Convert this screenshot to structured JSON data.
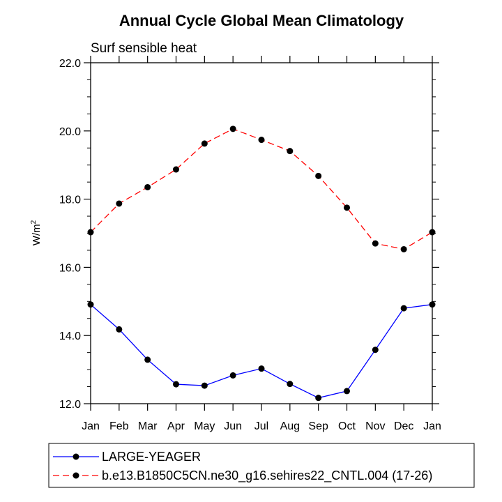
{
  "chart_data": {
    "type": "line",
    "title": "Annual Cycle Global Mean Climatology",
    "subtitle": "Surf sensible heat",
    "ylabel": "W/m",
    "ylabel_superscript": "2",
    "xlabel": "",
    "categories": [
      "Jan",
      "Feb",
      "Mar",
      "Apr",
      "May",
      "Jun",
      "Jul",
      "Aug",
      "Sep",
      "Oct",
      "Nov",
      "Dec",
      "Jan"
    ],
    "ylim": [
      12.0,
      22.0
    ],
    "yticks": [
      "12.0",
      "14.0",
      "16.0",
      "18.0",
      "20.0",
      "22.0"
    ],
    "ytick_values": [
      12,
      14,
      16,
      18,
      20,
      22
    ],
    "grid": false,
    "legend_position": "bottom",
    "series": [
      {
        "name": "LARGE-YEAGER",
        "color": "#0000ff",
        "dash": "solid",
        "marker": "filled-circle",
        "values": [
          14.91,
          14.18,
          13.29,
          12.57,
          12.53,
          12.83,
          13.03,
          12.58,
          12.17,
          12.37,
          13.58,
          14.8,
          14.91
        ]
      },
      {
        "name": "b.e13.B1850C5CN.ne30_g16.sehires22_CNTL.004 (17-26)",
        "color": "#ff0000",
        "dash": "dashed",
        "marker": "filled-circle",
        "values": [
          17.03,
          17.87,
          18.35,
          18.87,
          19.63,
          20.06,
          19.74,
          19.41,
          18.68,
          17.75,
          16.7,
          16.53,
          17.03
        ]
      }
    ]
  }
}
